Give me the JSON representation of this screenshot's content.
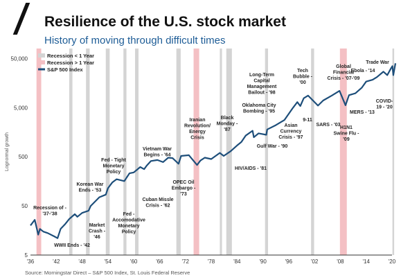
{
  "header": {
    "title": "Resilience of the U.S. stock market",
    "subtitle": "History of moving through difficult times"
  },
  "source": "Source: Morningstar Direct – S&P 500 Index, St. Louis Federal Reserve",
  "colors": {
    "line": "#1d4e7a",
    "short_recession": "#d4d4d4",
    "long_recession": "#f4c0c4",
    "subtitle": "#1d5c96"
  },
  "chart_data": {
    "type": "line",
    "title": "Resilience of the U.S. stock market",
    "subtitle": "History of moving through difficult times",
    "ylabel": "Lognormal growth",
    "xlabel": "",
    "y_scale": "log",
    "ylim": [
      5,
      80000
    ],
    "xlim": [
      1936,
      2020
    ],
    "y_ticks": [
      5,
      50,
      500,
      5000,
      50000
    ],
    "y_tick_labels": [
      "5",
      "50",
      "500",
      "5,000",
      "50,000"
    ],
    "x_ticks": [
      1936,
      1942,
      1948,
      1954,
      1960,
      1966,
      1972,
      1978,
      1984,
      1990,
      1996,
      2002,
      2008,
      2014,
      2020
    ],
    "x_tick_labels": [
      "'36",
      "'42",
      "'48",
      "'54",
      "'60",
      "'66",
      "'72",
      "'78",
      "'84",
      "'90",
      "'96",
      "'02",
      "'08",
      "'14",
      "'20"
    ],
    "legend": [
      "Recession < 1 Year",
      "Recession > 1 Year",
      "S&P 500 Index"
    ],
    "legend_position": "top-left",
    "grid": false,
    "series": [
      {
        "name": "S&P 500 Index",
        "x": [
          1936,
          1937,
          1937.8,
          1938.2,
          1939,
          1940,
          1941.5,
          1942.3,
          1943,
          1944,
          1945,
          1946.3,
          1946.9,
          1948,
          1949.5,
          1950,
          1952,
          1953.5,
          1954,
          1955,
          1956,
          1957.8,
          1959,
          1960,
          1961.5,
          1962.4,
          1963,
          1964,
          1965.5,
          1966.8,
          1968,
          1969,
          1970.4,
          1971,
          1972.8,
          1974.7,
          1975.5,
          1976.5,
          1978,
          1980,
          1980.9,
          1982.5,
          1984,
          1985,
          1986,
          1987.6,
          1987.9,
          1989,
          1990.8,
          1991,
          1993,
          1995,
          1997,
          1998,
          1998.7,
          1999.5,
          2000.5,
          2001.5,
          2002.8,
          2004,
          2006,
          2007.8,
          2009.2,
          2010,
          2011.5,
          2013,
          2014,
          2015.5,
          2016.5,
          2018,
          2018.9,
          2019.8,
          2020.1,
          2020.3,
          2020.8
        ],
        "values": [
          20,
          26,
          13,
          17,
          15,
          14,
          12,
          11,
          17,
          21,
          27,
          34,
          30,
          36,
          40,
          50,
          75,
          85,
          115,
          150,
          175,
          160,
          230,
          240,
          310,
          280,
          330,
          410,
          430,
          390,
          480,
          470,
          360,
          520,
          540,
          340,
          420,
          480,
          450,
          600,
          520,
          650,
          850,
          1000,
          1350,
          1700,
          1250,
          1500,
          1400,
          1800,
          2200,
          2800,
          5000,
          6500,
          5400,
          7800,
          8800,
          7200,
          5500,
          7000,
          8800,
          11000,
          5600,
          9000,
          9800,
          12800,
          17000,
          18500,
          21000,
          27000,
          23000,
          32000,
          35000,
          23000,
          40000
        ]
      }
    ],
    "recessions_short": [
      [
        1945,
        1945.75
      ],
      [
        1948.9,
        1949.75
      ],
      [
        1953.5,
        1954.4
      ],
      [
        1957.6,
        1958.3
      ],
      [
        1960.3,
        1961.1
      ],
      [
        1969.9,
        1970.9
      ],
      [
        1980,
        1980.5
      ],
      [
        1981.5,
        1982.8
      ],
      [
        1990.5,
        1991.2
      ],
      [
        2001.2,
        2001.9
      ],
      [
        2020.1,
        2020.4
      ]
    ],
    "recessions_long": [
      [
        1937.4,
        1938.5
      ],
      [
        1973.9,
        1975.2
      ],
      [
        2007.9,
        2009.5
      ]
    ],
    "annotations": [
      {
        "text": [
          "Recession of -",
          "'37-'38"
        ],
        "x": 1937.5
      },
      {
        "text": [
          "WWII Ends - '42"
        ],
        "x": 1942
      },
      {
        "text": [
          "Market",
          "Crash -",
          "'46"
        ],
        "x": 1946.5
      },
      {
        "text": [
          "Korean War",
          "Ends - '53"
        ],
        "x": 1953
      },
      {
        "text": [
          "Fed - Tight",
          "Monetary",
          "Policy"
        ],
        "x": 1956.5
      },
      {
        "text": [
          "Fed -",
          "Accomodative",
          "Monetary",
          "Policy"
        ],
        "x": 1958
      },
      {
        "text": [
          "Vietnam War",
          "Begins - '64"
        ],
        "x": 1964
      },
      {
        "text": [
          "Cuban Missle",
          "Crisis - '62"
        ],
        "x": 1962
      },
      {
        "text": [
          "OPEC Oil",
          "Embargo -",
          "'73"
        ],
        "x": 1973
      },
      {
        "text": [
          "Iranian",
          "Revolution/",
          "Energy",
          "Crisis"
        ],
        "x": 1979
      },
      {
        "text": [
          "Black",
          "Monday -",
          "'87"
        ],
        "x": 1987.8
      },
      {
        "text": [
          "HIV/AIDS - '81"
        ],
        "x": 1981
      },
      {
        "text": [
          "Gulf War - '90"
        ],
        "x": 1990.6
      },
      {
        "text": [
          "Oklahoma City",
          "Bombing - '95"
        ],
        "x": 1995
      },
      {
        "text": [
          "Long-Term",
          "Capital",
          "Management",
          "Bailout - '98"
        ],
        "x": 1998.7
      },
      {
        "text": [
          "Asian",
          "Currency",
          "Crisis - '97"
        ],
        "x": 1997
      },
      {
        "text": [
          "Tech",
          "Bubble -",
          "'00"
        ],
        "x": 2000.4
      },
      {
        "text": [
          "9-11"
        ],
        "x": 2001.7
      },
      {
        "text": [
          "Global",
          "Financial",
          "Crisis - '07-'09"
        ],
        "x": 2008
      },
      {
        "text": [
          "SARS - '03"
        ],
        "x": 2003
      },
      {
        "text": [
          "Trade War"
        ],
        "x": 2018.5
      },
      {
        "text": [
          "Ebola - '14"
        ],
        "x": 2014
      },
      {
        "text": [
          "MERS - '13"
        ],
        "x": 2013
      },
      {
        "text": [
          "H1N1",
          "Swine Flu -",
          "'09"
        ],
        "x": 2009.3
      },
      {
        "text": [
          "COVID-",
          "19 - '20"
        ],
        "x": 2020.2
      }
    ]
  }
}
